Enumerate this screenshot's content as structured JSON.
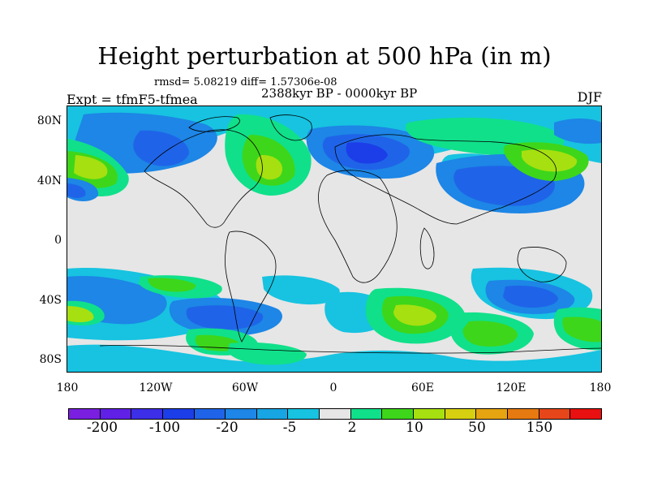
{
  "title": "Height perturbation at 500 hPa (in m)",
  "stats": "rmsd= 5.08219 diff= 1.57306e-08",
  "subtitle": "2388kyr BP - 0000kyr BP",
  "experiment": "Expt = tfmF5-tfmea",
  "season": "DJF",
  "y_labels": [
    "80N",
    "40N",
    "0",
    "40S",
    "80S"
  ],
  "x_labels": [
    "180",
    "120W",
    "60W",
    "0",
    "60E",
    "120E",
    "180"
  ],
  "colorbar": {
    "colors": [
      "#7a1fe0",
      "#6020e6",
      "#3d2ee8",
      "#1c3ee8",
      "#1f64e8",
      "#1d86e6",
      "#17a5e3",
      "#17c3e0",
      "#e6e6e6",
      "#10e08a",
      "#3ed61a",
      "#a6e010",
      "#d6d010",
      "#e6a410",
      "#e67a10",
      "#e6461a",
      "#e81010"
    ],
    "labels": [
      "-200",
      "-100",
      "-20",
      "-5",
      "2",
      "10",
      "50",
      "150"
    ]
  },
  "palette": {
    "background": "#e6e6e6",
    "cyan": "#17c3e0",
    "light_blue": "#1d86e6",
    "blue": "#1f64e8",
    "deep_blue": "#1c3ee8",
    "green_aqua": "#10e08a",
    "green": "#3ed61a",
    "lime": "#a6e010",
    "yellow": "#d6d010"
  }
}
